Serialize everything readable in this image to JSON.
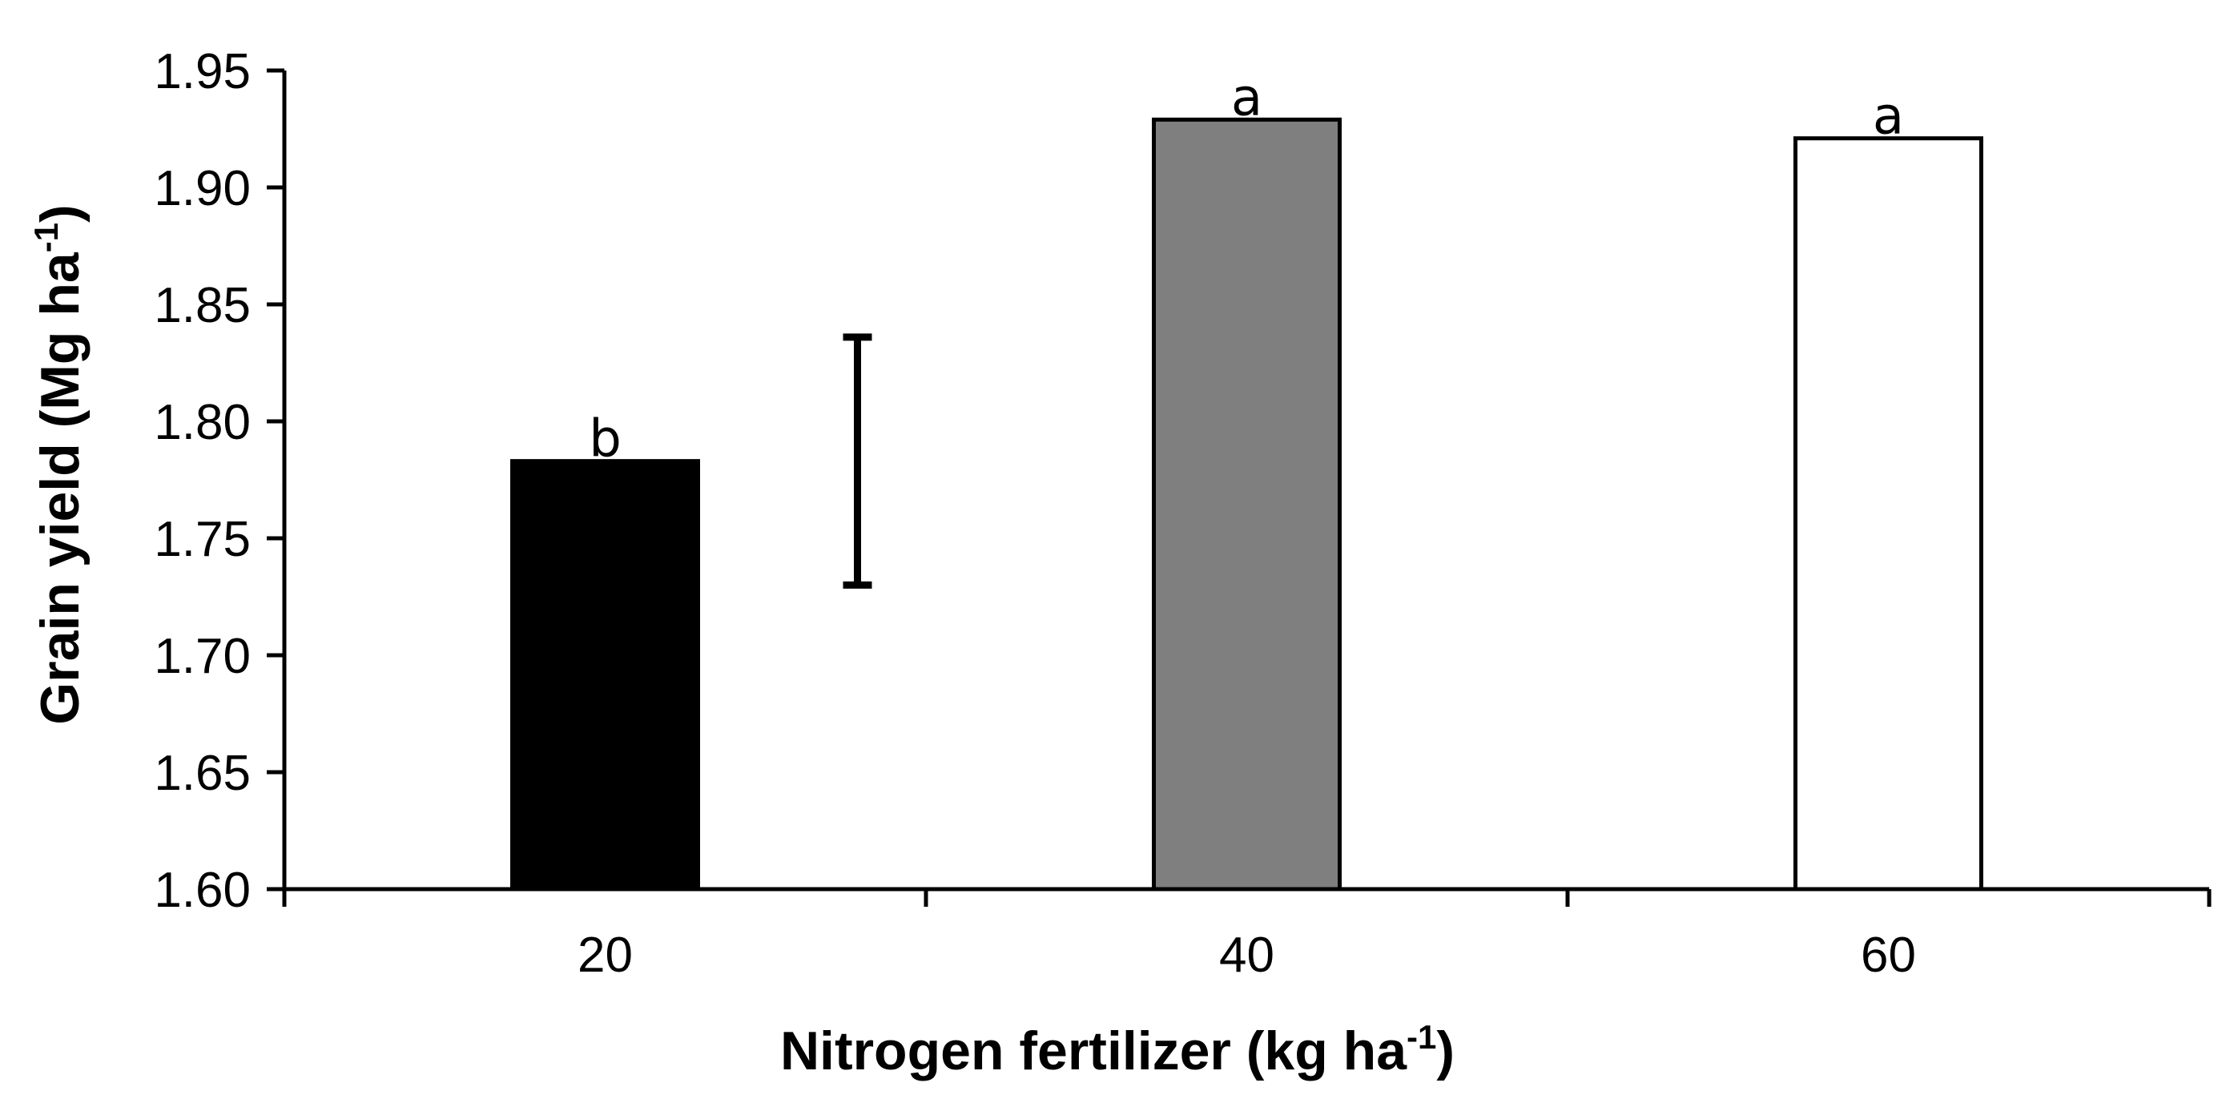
{
  "chart_data": {
    "type": "bar",
    "categories": [
      "20",
      "40",
      "60"
    ],
    "values": [
      1.783,
      1.929,
      1.921
    ],
    "bar_colors": [
      "#000000",
      "#7f7f7f",
      "#ffffff"
    ],
    "significance_labels": [
      "b",
      "a",
      "a"
    ],
    "title": "",
    "xlabel": "Nitrogen fertilizer (kg ha",
    "xlabel_sup": "-1",
    "xlabel_suffix": ")",
    "ylabel": "Grain yield (Mg ha",
    "ylabel_sup": "-1",
    "ylabel_suffix": ")",
    "ylim": [
      1.6,
      1.95
    ],
    "yticks": [
      "1.60",
      "1.65",
      "1.70",
      "1.75",
      "1.80",
      "1.85",
      "1.90",
      "1.95"
    ],
    "error_bar": {
      "low": 1.73,
      "high": 1.836
    },
    "grid": false,
    "legend": "none"
  }
}
